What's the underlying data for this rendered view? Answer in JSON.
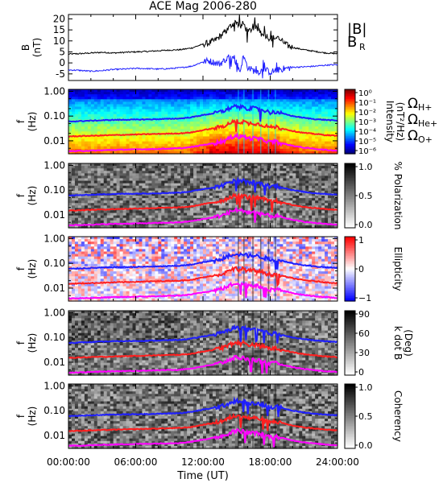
{
  "chart_data": [
    {
      "type": "line",
      "title": "ACE Mag 2006-280",
      "ylabel": "B",
      "yunit": "(nT)",
      "ylim": [
        -8,
        22
      ],
      "yticks": [
        "20",
        "15",
        "10",
        "5",
        "0",
        "-5"
      ],
      "legend_placement": "right",
      "x_range_hours": [
        0,
        24
      ],
      "series": [
        {
          "name": "|B|",
          "color": "#000000",
          "x": [
            0,
            1,
            2,
            3,
            4,
            5,
            6,
            7,
            8,
            9,
            10,
            11,
            12,
            12.5,
            13,
            13.5,
            14,
            14.5,
            15,
            15.3,
            15.6,
            16,
            16.5,
            17,
            17.5,
            18,
            18.5,
            19,
            19.5,
            20,
            21,
            22,
            23,
            24
          ],
          "y": [
            4,
            4.2,
            4.5,
            4.8,
            4.5,
            4.8,
            5,
            5.2,
            5.5,
            5.8,
            6,
            6.8,
            8.5,
            9,
            10,
            12,
            14,
            17,
            19,
            16,
            18,
            14,
            16,
            15,
            13,
            11,
            11.5,
            10,
            8,
            7,
            6,
            5.2,
            4.5,
            4.2
          ]
        },
        {
          "name": "B",
          "sub": "R",
          "color": "#1f1fff",
          "x": [
            0,
            1,
            2,
            3,
            4,
            5,
            6,
            7,
            8,
            9,
            10,
            11,
            12,
            12.5,
            13,
            13.5,
            14,
            14.5,
            15,
            15.3,
            15.6,
            16,
            16.5,
            17,
            17.5,
            18,
            18.5,
            19,
            19.5,
            20,
            21,
            22,
            23,
            24
          ],
          "y": [
            -3.2,
            -3.4,
            -3.8,
            -3.5,
            -3,
            -2.8,
            -2.5,
            -2.6,
            -2.8,
            -2.6,
            -2.2,
            -1.5,
            0.5,
            1,
            0.2,
            -0.5,
            1.5,
            3.5,
            0,
            -4,
            3,
            -2,
            -3.5,
            -4,
            -3,
            -4.2,
            -3.5,
            -2.8,
            -2.5,
            -2,
            -1.8,
            -1.5,
            -1,
            -0.8
          ]
        }
      ]
    },
    {
      "type": "heatmap",
      "ylabel": "f",
      "yunit": "(Hz)",
      "yticks": [
        "1.00",
        "0.10",
        "0.01"
      ],
      "colorbar": {
        "label": "Intensity",
        "unit": "(nT²/Hz)",
        "ticks": [
          "10⁰",
          "10⁻¹",
          "10⁻²",
          "10⁻³",
          "10⁻⁴",
          "10⁻⁵",
          "10⁻⁶"
        ]
      },
      "gyrofreq_labels": [
        {
          "text": "Ω",
          "sub": "H+",
          "color": "#1f1fff"
        },
        {
          "text": "Ω",
          "sub": "He+",
          "color": "#ff1f1f"
        },
        {
          "text": "Ω",
          "sub": "O+",
          "color": "#ff00ff"
        }
      ]
    },
    {
      "type": "heatmap",
      "ylabel": "f",
      "yunit": "(Hz)",
      "yticks": [
        "1.00",
        "0.10",
        "0.01"
      ],
      "colorbar": {
        "label": "% Polarization",
        "unit": "",
        "ticks": [
          "1.0",
          "0.5",
          "0.0"
        ]
      }
    },
    {
      "type": "heatmap",
      "ylabel": "f",
      "yunit": "(Hz)",
      "yticks": [
        "1.00",
        "0.10",
        "0.01"
      ],
      "colorbar": {
        "label": "Ellipticity",
        "unit": "",
        "ticks": [
          "1",
          "0",
          "−1"
        ]
      }
    },
    {
      "type": "heatmap",
      "ylabel": "f",
      "yunit": "(Hz)",
      "yticks": [
        "1.00",
        "0.10",
        "0.01"
      ],
      "colorbar": {
        "label": "k dot B",
        "unit": "(Deg)",
        "ticks": [
          "90",
          "60",
          "30",
          "0"
        ]
      }
    },
    {
      "type": "heatmap",
      "ylabel": "f",
      "yunit": "(Hz)",
      "yticks": [
        "1.00",
        "0.10",
        "0.01"
      ],
      "colorbar": {
        "label": "Coherency",
        "unit": "",
        "ticks": [
          "1.0",
          "0.5",
          "0.0"
        ]
      }
    }
  ],
  "gyrofrequency_curves_hz": {
    "x": [
      0,
      2,
      4,
      6,
      8,
      10,
      11,
      12,
      13,
      14,
      14.5,
      15,
      15.3,
      15.6,
      16,
      16.5,
      17,
      17.5,
      18,
      18.5,
      19,
      20,
      21,
      22,
      23,
      24
    ],
    "H+": [
      0.06,
      0.065,
      0.07,
      0.072,
      0.075,
      0.08,
      0.09,
      0.11,
      0.13,
      0.17,
      0.22,
      0.26,
      0.22,
      0.25,
      0.2,
      0.21,
      0.19,
      0.17,
      0.14,
      0.15,
      0.13,
      0.1,
      0.085,
      0.075,
      0.07,
      0.065
    ],
    "He+": [
      0.015,
      0.016,
      0.017,
      0.018,
      0.019,
      0.02,
      0.022,
      0.027,
      0.032,
      0.042,
      0.055,
      0.065,
      0.055,
      0.062,
      0.05,
      0.052,
      0.047,
      0.042,
      0.035,
      0.037,
      0.032,
      0.025,
      0.021,
      0.019,
      0.017,
      0.016
    ],
    "O+": [
      0.0038,
      0.004,
      0.0043,
      0.0045,
      0.0047,
      0.005,
      0.0056,
      0.0068,
      0.008,
      0.0105,
      0.0138,
      0.0163,
      0.0138,
      0.0155,
      0.0125,
      0.013,
      0.0118,
      0.0105,
      0.0088,
      0.0093,
      0.008,
      0.0063,
      0.0053,
      0.0047,
      0.0043,
      0.004
    ]
  },
  "x_axis": {
    "label": "Time (UT)",
    "ticks": [
      "00:00:00",
      "06:00:00",
      "12:00:00",
      "18:00:00",
      "24:00:00"
    ]
  },
  "colors": {
    "axis": "#000000",
    "h_plus": "#1f1fff",
    "he_plus": "#ff1f1f",
    "o_plus": "#ff00ff",
    "b_total": "#000000",
    "b_r": "#1f1fff"
  }
}
